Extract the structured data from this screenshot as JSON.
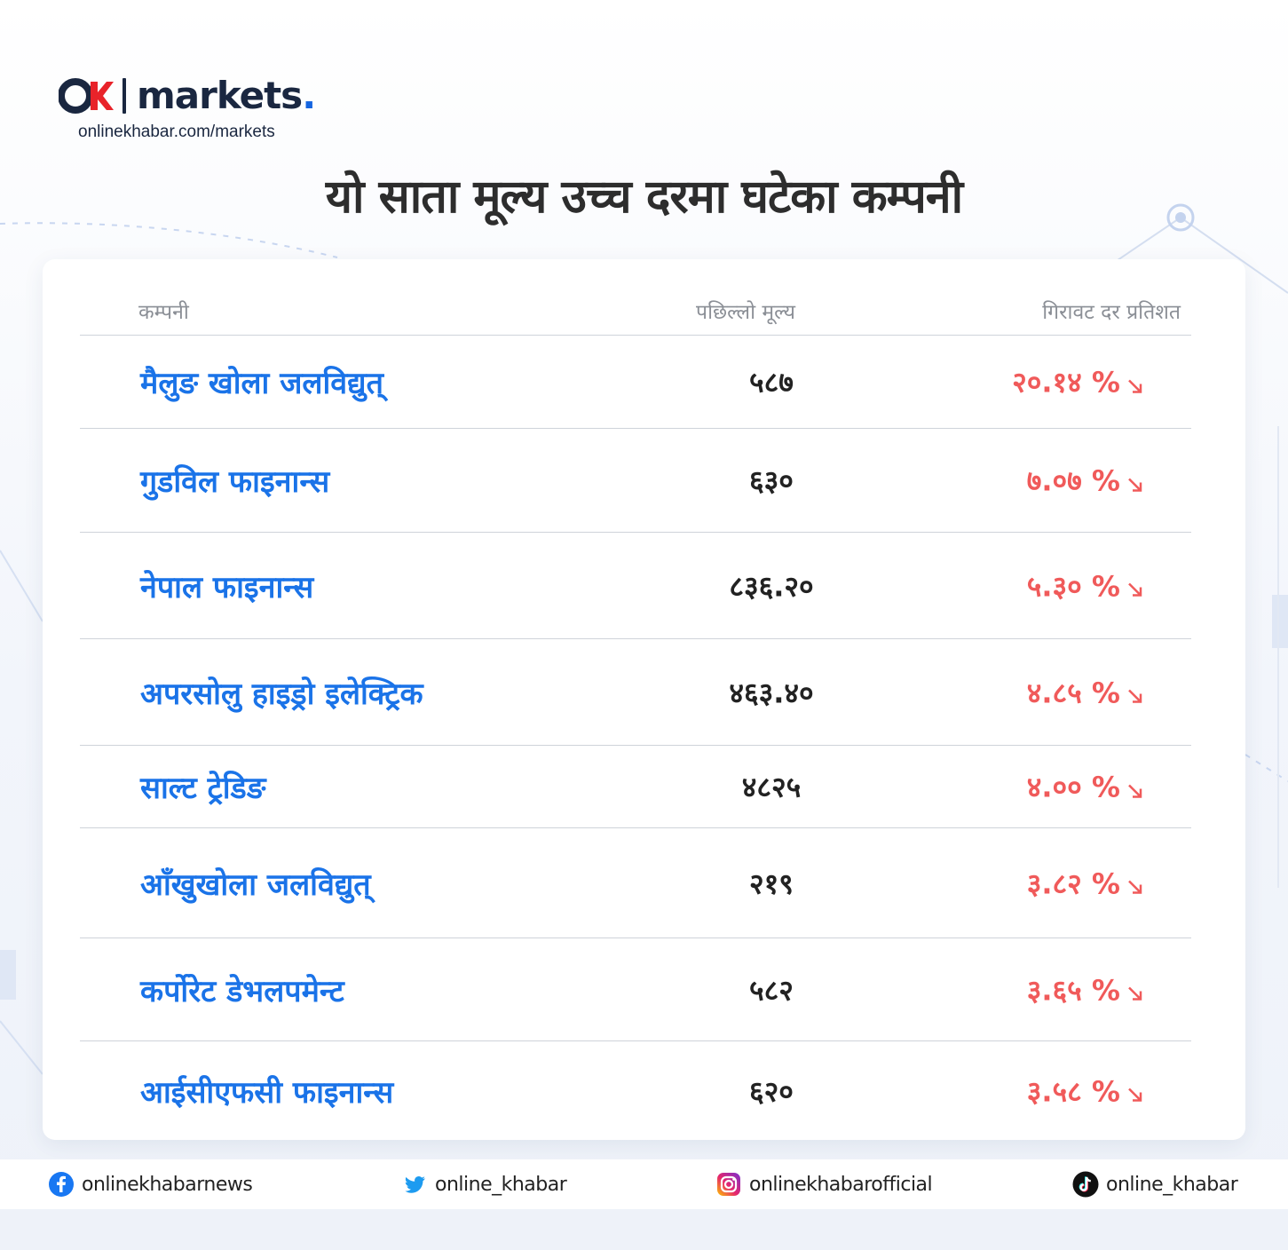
{
  "brand": {
    "logo_text": "markets",
    "logo_dot": ".",
    "url": "onlinekhabar.com/markets"
  },
  "headline": "यो साता मूल्य उच्च दरमा घटेका कम्पनी",
  "table": {
    "headers": {
      "company": "कम्पनी",
      "price": "पछिल्लो मूल्य",
      "rate": "गिरावट दर प्रतिशत"
    },
    "rows": [
      {
        "company": "मैलुङ खोला जलविद्युत्",
        "price": "५८७",
        "rate": "२०.१४ %"
      },
      {
        "company": "गुडविल फाइनान्स",
        "price": "६३०",
        "rate": "७.०७ %"
      },
      {
        "company": "नेपाल फाइनान्स",
        "price": "८३६.२०",
        "rate": "५.३० %"
      },
      {
        "company": "अपरसोलु हाइड्रो इलेक्ट्रिक",
        "price": "४६३.४०",
        "rate": "४.८५ %"
      },
      {
        "company": "साल्ट ट्रेडिङ",
        "price": "४८२५",
        "rate": "४.०० %"
      },
      {
        "company": "आँखुखोला जलविद्युत्",
        "price": "२१९",
        "rate": "३.८२ %"
      },
      {
        "company": "कर्पोरेट डेभलपमेन्ट",
        "price": "५८२",
        "rate": "३.६५ %"
      },
      {
        "company": "आईसीएफसी फाइनान्स",
        "price": "६२०",
        "rate": "३.५८ %"
      }
    ]
  },
  "footer": {
    "facebook": "onlinekhabarnews",
    "twitter": "online_khabar",
    "instagram": "onlinekhabarofficial",
    "tiktok": "online_khabar"
  },
  "colors": {
    "company_text": "#1a73e8",
    "decline_text": "#f05a5a",
    "logo_red": "#e8232a",
    "logo_navy": "#1a2740",
    "logo_dot": "#1565e0"
  },
  "icons": {
    "decline": "arrow-down-right-icon",
    "facebook": "facebook-icon",
    "twitter": "twitter-icon",
    "instagram": "instagram-icon",
    "tiktok": "tiktok-icon"
  }
}
